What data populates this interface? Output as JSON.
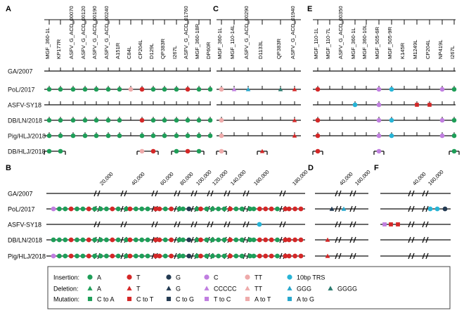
{
  "colors": {
    "insertion": {
      "A": "#1e9e58",
      "T": "#d42727",
      "G": "#233a52",
      "C": "#c07ee0",
      "TT": "#eeaaaa",
      "TRS": "#27b4d6"
    },
    "deletion": {
      "A": "#1e9e58",
      "T": "#d42727",
      "G": "#233a52",
      "CCCCC": "#c07ee0",
      "TT": "#eeaaaa",
      "GGG": "#27a6cc",
      "GGGG": "#2a7a6e"
    },
    "mutation": {
      "CtoA": "#1e9e58",
      "CtoT": "#d42727",
      "CtoG": "#233a52",
      "TtoC": "#c07ee0",
      "AtoT": "#eeaaaa",
      "AtoG": "#27a6cc"
    }
  },
  "panels": {
    "A": {
      "letter": "A",
      "genes": [
        "MGF_360-1L",
        "KP177R",
        "ASFV_G_ACD_00070",
        "ASFV_G_ACD_00120",
        "ASFV_G_ACD_00190",
        "ASFV_G_ACD_00240",
        "A151R",
        "C84L",
        "CP204L",
        "D129L",
        "QP383R",
        "I267L",
        "ASFV_G_ACD_01760",
        "MGF_360-18R",
        "DP60R"
      ],
      "rows": [
        {
          "marks": []
        },
        {
          "marks": [
            [
              "circle",
              "A",
              0
            ],
            [
              "circle",
              "A",
              1
            ],
            [
              "circle",
              "A",
              2
            ],
            [
              "circle",
              "A",
              3
            ],
            [
              "circle",
              "A",
              4
            ],
            [
              "circle",
              "A",
              5
            ],
            [
              "circle",
              "A",
              6
            ],
            [
              "circle",
              "TT",
              7
            ],
            [
              "circle",
              "T",
              8
            ],
            [
              "circle",
              "A",
              9
            ],
            [
              "circle",
              "A",
              10
            ],
            [
              "circle",
              "A",
              11
            ],
            [
              "circle",
              "T",
              12
            ],
            [
              "circle",
              "A",
              13
            ],
            [
              "circle",
              "A",
              14
            ]
          ]
        },
        {
          "marks": []
        },
        {
          "marks": [
            [
              "circle",
              "A",
              0
            ],
            [
              "circle",
              "A",
              1
            ],
            [
              "circle",
              "A",
              2
            ],
            [
              "circle",
              "A",
              3
            ],
            [
              "circle",
              "A",
              4
            ],
            [
              "circle",
              "A",
              5
            ],
            [
              "circle",
              "A",
              6
            ],
            [
              "circle",
              "T",
              8
            ],
            [
              "circle",
              "A",
              9
            ],
            [
              "circle",
              "A",
              10
            ],
            [
              "circle",
              "A",
              11
            ],
            [
              "circle",
              "A",
              12
            ],
            [
              "circle",
              "A",
              13
            ],
            [
              "circle",
              "A",
              14
            ]
          ]
        },
        {
          "marks": [
            [
              "circle",
              "A",
              0
            ],
            [
              "circle",
              "A",
              1
            ],
            [
              "circle",
              "A",
              2
            ],
            [
              "circle",
              "A",
              3
            ],
            [
              "circle",
              "A",
              4
            ],
            [
              "circle",
              "A",
              5
            ],
            [
              "circle",
              "A",
              6
            ],
            [
              "circle",
              "A",
              8
            ],
            [
              "circle",
              "A",
              9
            ],
            [
              "circle",
              "A",
              10
            ],
            [
              "circle",
              "A",
              11
            ],
            [
              "circle",
              "A",
              12
            ],
            [
              "circle",
              "A",
              13
            ],
            [
              "circle",
              "A",
              14
            ]
          ]
        },
        {
          "marks": [
            [
              "circle",
              "A",
              0
            ],
            [
              "circle",
              "A",
              1
            ],
            [
              "circle",
              "TT",
              8
            ],
            [
              "circle",
              "T",
              9
            ],
            [
              "circle",
              "A",
              11
            ],
            [
              "circle",
              "T",
              12
            ],
            [
              "circle",
              "A",
              13
            ]
          ]
        }
      ]
    },
    "C": {
      "letter": "C",
      "genes": [
        "MGF_360-1L",
        "MGF_110-14L",
        "ASFV_G_ACD_00290",
        "D1133L",
        "QP383R",
        "ASFV_G_ACD_01940"
      ],
      "rows": [
        {
          "marks": []
        },
        {
          "marks": [
            [
              "circle",
              "TT",
              0
            ],
            [
              "tri",
              "CCCCC",
              1
            ],
            [
              "tri",
              "GGG",
              2
            ],
            [
              "tri",
              "GGGG",
              4
            ],
            [
              "tri",
              "T",
              5
            ]
          ]
        },
        {
          "marks": []
        },
        {
          "marks": [
            [
              "circle",
              "TT",
              0
            ],
            [
              "tri",
              "T",
              5
            ]
          ]
        },
        {
          "marks": [
            [
              "circle",
              "TT",
              0
            ],
            [
              "tri",
              "T",
              5
            ]
          ]
        },
        {
          "marks": [
            [
              "circle",
              "TT",
              0
            ],
            [
              "tri",
              "T",
              3
            ]
          ]
        }
      ]
    },
    "E": {
      "letter": "E",
      "genes": [
        "MGF_110-1L",
        "MGF_110-7L",
        "ASFV_G_ACD_00350",
        "MGF_360-1L",
        "MGF_360-10L",
        "MGF_505-6R",
        "MGF_505-9R",
        "K145R",
        "M1249L",
        "CP204L",
        "NP419L",
        "I267L"
      ],
      "rows": [
        {
          "marks": []
        },
        {
          "marks": [
            [
              "circle",
              "T",
              0
            ],
            [
              "circle",
              "C",
              5
            ],
            [
              "circle",
              "TRS",
              6
            ],
            [
              "circle",
              "C",
              10
            ],
            [
              "circle",
              "A",
              11
            ]
          ]
        },
        {
          "marks": [
            [
              "circle",
              "TRS",
              3
            ],
            [
              "circle",
              "C",
              5
            ],
            [
              "square",
              "CtoT",
              8
            ],
            [
              "square",
              "CtoT",
              9
            ]
          ]
        },
        {
          "marks": [
            [
              "circle",
              "T",
              0
            ],
            [
              "circle",
              "C",
              5
            ],
            [
              "circle",
              "TRS",
              6
            ],
            [
              "circle",
              "C",
              10
            ],
            [
              "circle",
              "A",
              11
            ]
          ]
        },
        {
          "marks": [
            [
              "circle",
              "T",
              0
            ],
            [
              "circle",
              "C",
              5
            ],
            [
              "circle",
              "TRS",
              6
            ],
            [
              "circle",
              "C",
              10
            ],
            [
              "circle",
              "A",
              11
            ]
          ]
        },
        {
          "marks": [
            [
              "circle",
              "T",
              0
            ],
            [
              "circle",
              "C",
              5
            ],
            [
              "circle",
              "A",
              11
            ]
          ]
        }
      ]
    },
    "B": {
      "letter": "B",
      "ticks": [
        "20,000",
        "40,000",
        "60,000",
        "80,000",
        "100,000",
        "120,000",
        "140,000",
        "160,000",
        "180,000"
      ]
    },
    "D": {
      "letter": "D",
      "ticks": [
        "40,000",
        "160,000"
      ]
    },
    "F": {
      "letter": "F",
      "ticks": [
        "40,000",
        "160,000"
      ]
    },
    "strains": [
      "GA/2007",
      "PoL/2017",
      "ASFV-SY18",
      "DB/LN/2018",
      "Pig/HLJ/2018",
      "DB/HLJ/2018"
    ]
  },
  "legend": {
    "rows": [
      {
        "label": "Insertion:",
        "items": [
          [
            "circle",
            "A",
            "A"
          ],
          [
            "circle",
            "T",
            "T"
          ],
          [
            "circle",
            "G",
            "G"
          ],
          [
            "circle",
            "C",
            "C"
          ],
          [
            "circle",
            "TT",
            "TT"
          ],
          [
            "circle",
            "TRS",
            "10bp TRS"
          ]
        ]
      },
      {
        "label": "Deletion:",
        "items": [
          [
            "tri",
            "A",
            "A"
          ],
          [
            "tri",
            "T",
            "T"
          ],
          [
            "tri",
            "G",
            "G"
          ],
          [
            "tri",
            "CCCCC",
            "CCCCC"
          ],
          [
            "tri",
            "TT",
            "TT"
          ],
          [
            "tri",
            "GGG",
            "GGG"
          ],
          [
            "tri",
            "GGGG",
            "GGGG"
          ]
        ]
      },
      {
        "label": "Mutation:",
        "items": [
          [
            "square",
            "CtoA",
            "C to A"
          ],
          [
            "square",
            "CtoT",
            "C to T"
          ],
          [
            "square",
            "CtoG",
            "C to G"
          ],
          [
            "square",
            "TtoC",
            "T to C"
          ],
          [
            "square",
            "AtoT",
            "A to T"
          ],
          [
            "square",
            "AtoG",
            "A to G"
          ]
        ]
      }
    ]
  }
}
